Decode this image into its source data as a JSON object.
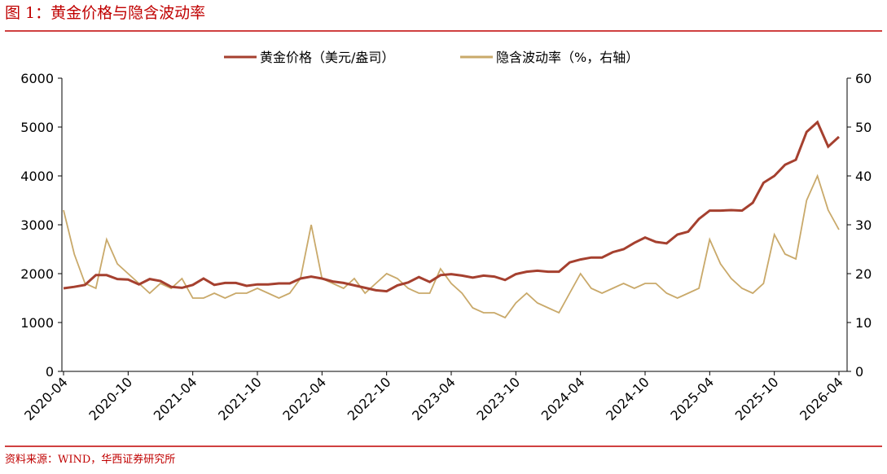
{
  "title": "图 1：黄金价格与隐含波动率",
  "source": "资料来源：WIND，华西证券研究所",
  "chart_data": {
    "type": "line",
    "x": [
      "2020-04",
      "2020-05",
      "2020-06",
      "2020-07",
      "2020-08",
      "2020-09",
      "2020-10",
      "2020-11",
      "2020-12",
      "2021-01",
      "2021-02",
      "2021-03",
      "2021-04",
      "2021-05",
      "2021-06",
      "2021-07",
      "2021-08",
      "2021-09",
      "2021-10",
      "2021-11",
      "2021-12",
      "2022-01",
      "2022-02",
      "2022-03",
      "2022-04",
      "2022-05",
      "2022-06",
      "2022-07",
      "2022-08",
      "2022-09",
      "2022-10",
      "2022-11",
      "2022-12",
      "2023-01",
      "2023-02",
      "2023-03",
      "2023-04",
      "2023-05",
      "2023-06",
      "2023-07",
      "2023-08",
      "2023-09",
      "2023-10",
      "2023-11",
      "2023-12",
      "2024-01",
      "2024-02",
      "2024-03",
      "2024-04",
      "2024-05",
      "2024-06",
      "2024-07",
      "2024-08",
      "2024-09",
      "2024-10",
      "2024-11",
      "2024-12",
      "2025-01",
      "2025-02",
      "2025-03",
      "2025-04",
      "2025-05",
      "2025-06",
      "2025-07",
      "2025-08",
      "2025-09",
      "2025-10",
      "2025-11",
      "2025-12",
      "2026-01",
      "2026-02",
      "2026-03",
      "2026-04"
    ],
    "xticks": [
      "2020-04",
      "2020-10",
      "2021-04",
      "2021-10",
      "2022-04",
      "2022-10",
      "2023-04",
      "2023-10",
      "2024-04",
      "2024-10",
      "2025-04",
      "2025-10",
      "2026-04"
    ],
    "series": [
      {
        "name": "黄金价格（美元/盎司）",
        "color": "#a5402f",
        "axis": "y",
        "values": [
          1700,
          1730,
          1770,
          1970,
          1970,
          1890,
          1880,
          1780,
          1890,
          1850,
          1730,
          1710,
          1770,
          1900,
          1770,
          1810,
          1810,
          1750,
          1780,
          1780,
          1800,
          1800,
          1900,
          1940,
          1900,
          1840,
          1810,
          1760,
          1710,
          1660,
          1640,
          1760,
          1820,
          1930,
          1830,
          1970,
          1990,
          1960,
          1920,
          1960,
          1940,
          1870,
          1990,
          2040,
          2060,
          2040,
          2040,
          2230,
          2290,
          2330,
          2330,
          2440,
          2500,
          2630,
          2740,
          2650,
          2620,
          2800,
          2860,
          3120,
          3290,
          3290,
          3300,
          3290,
          3450,
          3860,
          4000,
          4230,
          4330,
          4900,
          5100,
          4600,
          4800
        ]
      },
      {
        "name": "隐含波动率（%，右轴）",
        "color": "#c9a96a",
        "axis": "y2",
        "values": [
          33,
          24,
          18,
          17,
          27,
          22,
          20,
          18,
          16,
          18,
          17,
          19,
          15,
          15,
          16,
          15,
          16,
          16,
          17,
          16,
          15,
          16,
          19,
          30,
          19,
          18,
          17,
          19,
          16,
          18,
          20,
          19,
          17,
          16,
          16,
          21,
          18,
          16,
          13,
          12,
          12,
          11,
          14,
          16,
          14,
          13,
          12,
          16,
          20,
          17,
          16,
          17,
          18,
          17,
          18,
          18,
          16,
          15,
          16,
          17,
          27,
          22,
          19,
          17,
          16,
          18,
          28,
          24,
          23,
          35,
          40,
          33,
          29
        ]
      }
    ],
    "ylim": [
      0,
      6000
    ],
    "yticks": [
      0,
      1000,
      2000,
      3000,
      4000,
      5000,
      6000
    ],
    "y2lim": [
      0,
      60
    ],
    "y2ticks": [
      0,
      10,
      20,
      30,
      40,
      50,
      60
    ]
  }
}
